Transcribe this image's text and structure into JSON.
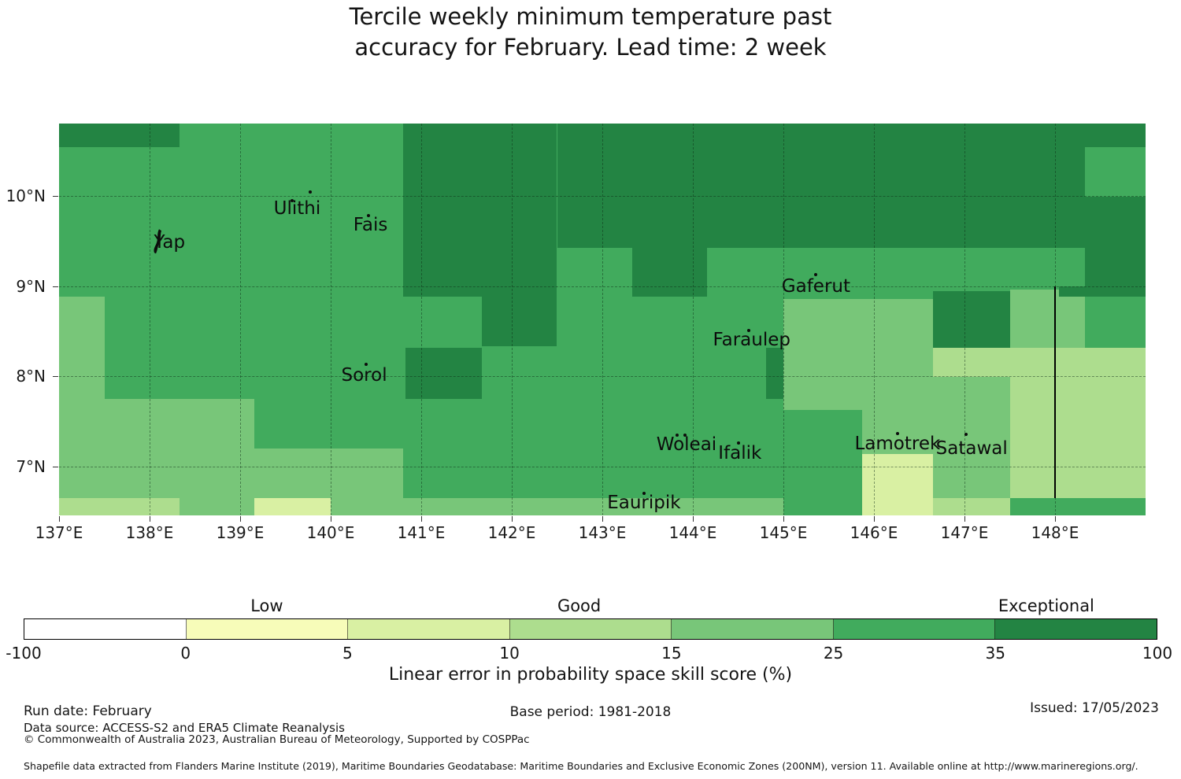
{
  "title": {
    "line1": "Tercile weekly minimum temperature past",
    "line2": "accuracy for February. Lead time: 2 week"
  },
  "chart_data": {
    "type": "heatmap",
    "title": "Tercile weekly minimum temperature past accuracy for February. Lead time: 2 week",
    "colorbar_title": "Linear error in probability space skill score (%)",
    "map_extent": {
      "lon_min": 137.0,
      "lon_max": 149.0,
      "lat_min": 6.46,
      "lat_max": 10.8
    },
    "lon_ticks": [
      {
        "label": "137°E",
        "lon": 137
      },
      {
        "label": "138°E",
        "lon": 138
      },
      {
        "label": "139°E",
        "lon": 139
      },
      {
        "label": "140°E",
        "lon": 140
      },
      {
        "label": "141°E",
        "lon": 141
      },
      {
        "label": "142°E",
        "lon": 142
      },
      {
        "label": "143°E",
        "lon": 143
      },
      {
        "label": "144°E",
        "lon": 144
      },
      {
        "label": "145°E",
        "lon": 145
      },
      {
        "label": "146°E",
        "lon": 146
      },
      {
        "label": "147°E",
        "lon": 147
      },
      {
        "label": "148°E",
        "lon": 148
      }
    ],
    "lat_ticks": [
      {
        "label": "10°N",
        "lat": 10
      },
      {
        "label": "9°N",
        "lat": 9
      },
      {
        "label": "8°N",
        "lat": 8
      },
      {
        "label": "7°N",
        "lat": 7
      }
    ],
    "bins": {
      "edges": [
        -100,
        0,
        5,
        10,
        15,
        25,
        35,
        100
      ],
      "colors": [
        "#ffffff",
        "#f7fcb9",
        "#d9f0a3",
        "#addd8e",
        "#78c679",
        "#41ab5d",
        "#238443"
      ],
      "categories": [
        {
          "label": "Low",
          "frac": 0.2145
        },
        {
          "label": "Good",
          "frac": 0.49
        },
        {
          "label": "Exceptional",
          "frac": 0.902
        }
      ]
    },
    "base_bin": "25-35",
    "cells": [
      {
        "lon0": 137.0,
        "lon1": 138.33,
        "lat0": 10.54,
        "lat1": 10.8,
        "bin": "35-100"
      },
      {
        "lon0": 140.8,
        "lon1": 141.67,
        "lat0": 8.88,
        "lat1": 10.8,
        "bin": "35-100"
      },
      {
        "lon0": 141.67,
        "lon1": 142.5,
        "lat0": 8.33,
        "lat1": 10.8,
        "bin": "35-100"
      },
      {
        "lon0": 142.5,
        "lon1": 143.33,
        "lat0": 9.42,
        "lat1": 10.8,
        "bin": "35-100"
      },
      {
        "lon0": 143.33,
        "lon1": 144.16,
        "lat0": 8.88,
        "lat1": 10.8,
        "bin": "35-100"
      },
      {
        "lon0": 144.16,
        "lon1": 148.33,
        "lat0": 9.42,
        "lat1": 10.8,
        "bin": "35-100"
      },
      {
        "lon0": 148.33,
        "lon1": 149.0,
        "lat0": 10.54,
        "lat1": 10.8,
        "bin": "35-100"
      },
      {
        "lon0": 148.33,
        "lon1": 149.0,
        "lat0": 8.88,
        "lat1": 9.99,
        "bin": "35-100"
      },
      {
        "lon0": 148.04,
        "lon1": 148.33,
        "lat0": 8.88,
        "lat1": 9.0,
        "bin": "35-100"
      },
      {
        "lon0": 146.65,
        "lon1": 147.5,
        "lat0": 8.32,
        "lat1": 8.94,
        "bin": "35-100"
      },
      {
        "lon0": 140.83,
        "lon1": 141.67,
        "lat0": 7.75,
        "lat1": 8.32,
        "bin": "35-100"
      },
      {
        "lon0": 144.81,
        "lon1": 145.0,
        "lat0": 7.75,
        "lat1": 8.32,
        "bin": "35-100"
      },
      {
        "lon0": 137.0,
        "lon1": 137.5,
        "lat0": 7.75,
        "lat1": 8.88,
        "bin": "15-25"
      },
      {
        "lon0": 137.0,
        "lon1": 139.16,
        "lat0": 6.46,
        "lat1": 7.75,
        "bin": "15-25"
      },
      {
        "lon0": 139.16,
        "lon1": 140.8,
        "lat0": 6.46,
        "lat1": 7.2,
        "bin": "15-25"
      },
      {
        "lon0": 140.0,
        "lon1": 145.0,
        "lat0": 6.46,
        "lat1": 6.65,
        "bin": "15-25"
      },
      {
        "lon0": 145.0,
        "lon1": 146.65,
        "lat0": 7.63,
        "lat1": 8.86,
        "bin": "15-25"
      },
      {
        "lon0": 145.87,
        "lon1": 146.65,
        "lat0": 7.14,
        "lat1": 7.63,
        "bin": "15-25"
      },
      {
        "lon0": 146.65,
        "lon1": 147.5,
        "lat0": 6.65,
        "lat1": 7.99,
        "bin": "15-25"
      },
      {
        "lon0": 147.5,
        "lon1": 148.04,
        "lat0": 8.32,
        "lat1": 8.96,
        "bin": "15-25"
      },
      {
        "lon0": 148.04,
        "lon1": 148.33,
        "lat0": 8.32,
        "lat1": 8.88,
        "bin": "15-25"
      },
      {
        "lon0": 147.5,
        "lon1": 149.0,
        "lat0": 6.65,
        "lat1": 8.32,
        "bin": "10-15"
      },
      {
        "lon0": 146.65,
        "lon1": 147.5,
        "lat0": 7.99,
        "lat1": 8.32,
        "bin": "10-15"
      },
      {
        "lon0": 146.65,
        "lon1": 147.5,
        "lat0": 6.46,
        "lat1": 6.65,
        "bin": "10-15"
      },
      {
        "lon0": 137.0,
        "lon1": 138.33,
        "lat0": 6.46,
        "lat1": 6.65,
        "bin": "10-15"
      },
      {
        "lon0": 139.16,
        "lon1": 140.0,
        "lat0": 6.46,
        "lat1": 6.65,
        "bin": "5-10"
      },
      {
        "lon0": 145.87,
        "lon1": 146.65,
        "lat0": 6.46,
        "lat1": 7.14,
        "bin": "5-10"
      }
    ],
    "islands": [
      {
        "name": "Yap",
        "lon": 138.22,
        "lat": 9.48,
        "shape": "yap",
        "dots": []
      },
      {
        "name": "Ulithi",
        "lon": 139.63,
        "lat": 9.86,
        "dots": [
          {
            "lon": 139.57,
            "lat": 9.95
          },
          {
            "lon": 139.77,
            "lat": 10.04
          }
        ]
      },
      {
        "name": "Fais",
        "lon": 140.44,
        "lat": 9.68,
        "dots": [
          {
            "lon": 140.42,
            "lat": 9.78
          }
        ]
      },
      {
        "name": "Sorol",
        "lon": 140.37,
        "lat": 8.01,
        "dots": [
          {
            "lon": 140.39,
            "lat": 8.13
          }
        ]
      },
      {
        "name": "Gaferut",
        "lon": 145.36,
        "lat": 9.0,
        "dots": [
          {
            "lon": 145.36,
            "lat": 9.13
          }
        ]
      },
      {
        "name": "Faraulep",
        "lon": 144.65,
        "lat": 8.4,
        "dots": [
          {
            "lon": 144.62,
            "lat": 8.51
          }
        ]
      },
      {
        "name": "Woleai",
        "lon": 143.93,
        "lat": 7.24,
        "dots": [
          {
            "lon": 143.83,
            "lat": 7.35
          },
          {
            "lon": 143.91,
            "lat": 7.35
          }
        ]
      },
      {
        "name": "Ifalik",
        "lon": 144.52,
        "lat": 7.15,
        "dots": [
          {
            "lon": 144.5,
            "lat": 7.26
          }
        ]
      },
      {
        "name": "Eauripik",
        "lon": 143.46,
        "lat": 6.6,
        "dots": [
          {
            "lon": 143.46,
            "lat": 6.7
          }
        ]
      },
      {
        "name": "Lamotrek",
        "lon": 146.26,
        "lat": 7.25,
        "dots": [
          {
            "lon": 146.26,
            "lat": 7.37
          }
        ]
      },
      {
        "name": "Satawal",
        "lon": 147.08,
        "lat": 7.2,
        "dots": [
          {
            "lon": 147.02,
            "lat": 7.36
          }
        ]
      }
    ],
    "eez_line": {
      "lon": 148.0,
      "lat_south": 6.65,
      "lat_north": 9.0,
      "color": "#000000"
    }
  },
  "footer": {
    "run_date": "Run date: February",
    "base_period": "Base period: 1981-2018",
    "issued": "Issued: 17/05/2023",
    "data_source": "Data source: ACCESS-S2 and ERA5 Climate Reanalysis",
    "copyright": "© Commonwealth of Australia 2023, Australian Bureau of Meteorology, Supported by COSPPac",
    "shapefile": "Shapefile data extracted from Flanders Marine Institute (2019), Maritime Boundaries Geodatabase: Maritime Boundaries and Exclusive Economic Zones (200NM), version 11. Available online at http://www.marineregions.org/."
  }
}
